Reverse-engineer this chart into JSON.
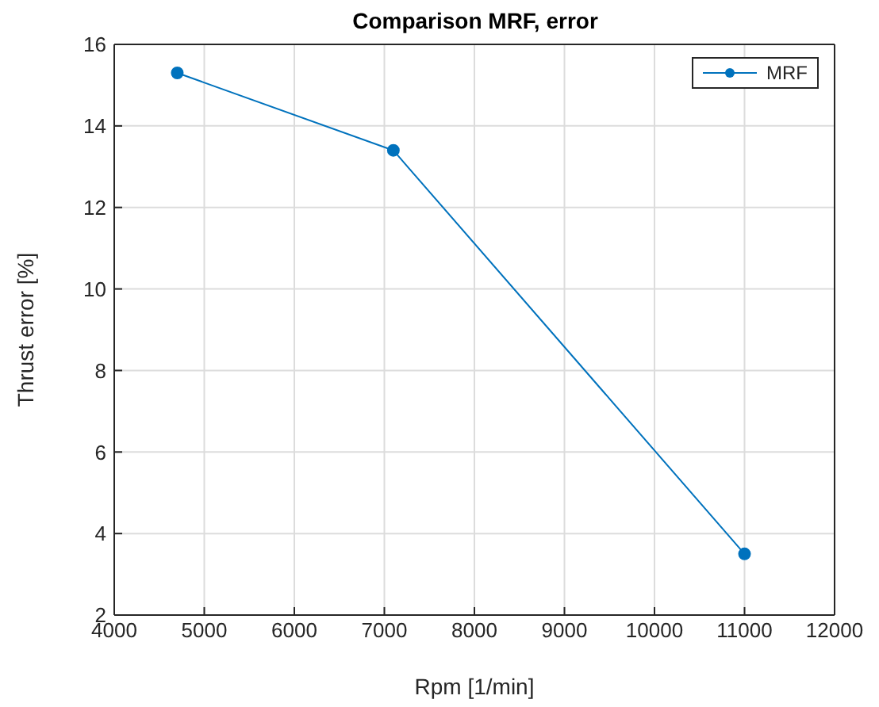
{
  "chart_data": {
    "type": "line",
    "title": "Comparison MRF, error",
    "xlabel": "Rpm [1/min]",
    "ylabel": "Thrust error [%]",
    "x": [
      4700,
      7100,
      11000
    ],
    "series": [
      {
        "name": "MRF",
        "color": "#0072bd",
        "values": [
          15.3,
          13.4,
          3.5
        ]
      }
    ],
    "xlim": [
      4000,
      12000
    ],
    "xticks": [
      4000,
      5000,
      6000,
      7000,
      8000,
      9000,
      10000,
      11000,
      12000
    ],
    "ylim": [
      2,
      16
    ],
    "yticks": [
      2,
      4,
      6,
      8,
      10,
      12,
      14,
      16
    ],
    "grid": true,
    "legend": "top right",
    "marker": "circle",
    "line_style": "solid"
  }
}
